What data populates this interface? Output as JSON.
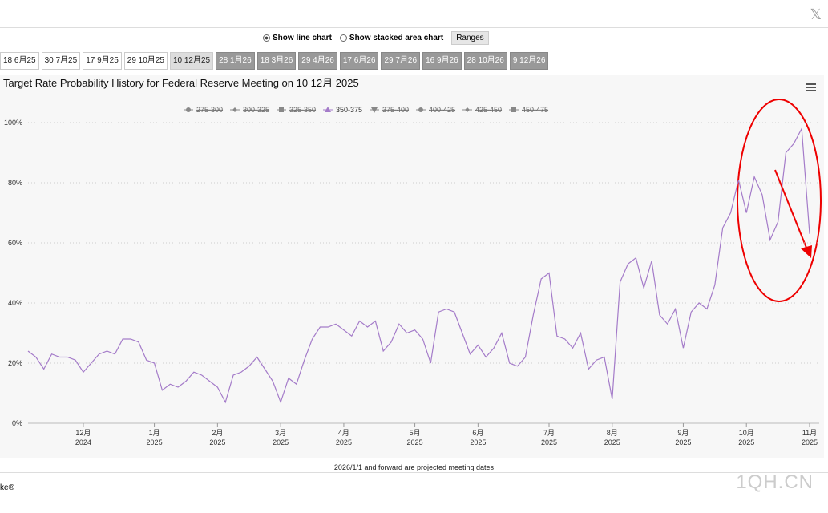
{
  "ui": {
    "options": [
      "Show line chart",
      "Show stacked area chart"
    ],
    "ranges": "Ranges",
    "tabs": [
      "18 6月25",
      "30 7月25",
      "17 9月25",
      "29 10月25",
      "10 12月25",
      "28 1月26",
      "18 3月26",
      "29 4月26",
      "17 6月26",
      "29 7月26",
      "16 9月26",
      "28 10月26",
      "9 12月26"
    ],
    "footnote": "2026/1/1 and forward are projected meeting dates",
    "credit": "ke",
    "watermark": "1QH.CN"
  },
  "chart_data": {
    "type": "line",
    "title": "Target Rate Probability History for Federal Reserve Meeting on 10 12月 2025",
    "hidden_series": [
      "275-300",
      "300-325",
      "325-350",
      "375-400",
      "400-425",
      "425-450",
      "450-475"
    ],
    "categories": [
      null,
      null,
      null,
      null,
      null,
      null,
      null,
      "12月",
      null,
      null,
      null,
      null,
      null,
      null,
      null,
      null,
      "1月",
      null,
      null,
      null,
      null,
      null,
      null,
      null,
      "2月",
      null,
      null,
      null,
      null,
      null,
      null,
      null,
      "3月",
      null,
      null,
      null,
      null,
      null,
      null,
      null,
      "4月",
      null,
      null,
      null,
      null,
      null,
      null,
      null,
      null,
      "5月",
      null,
      null,
      null,
      null,
      null,
      null,
      null,
      "6月",
      null,
      null,
      null,
      null,
      null,
      null,
      null,
      null,
      "7月",
      null,
      null,
      null,
      null,
      null,
      null,
      null,
      "8月",
      null,
      null,
      null,
      null,
      null,
      null,
      null,
      null,
      "9月",
      null,
      null,
      null,
      null,
      null,
      null,
      null,
      "10月",
      null,
      null,
      null,
      null,
      null,
      null,
      null,
      "11月"
    ],
    "category_years": [
      null,
      null,
      null,
      null,
      null,
      null,
      null,
      "2024",
      null,
      null,
      null,
      null,
      null,
      null,
      null,
      null,
      "2025",
      null,
      null,
      null,
      null,
      null,
      null,
      null,
      "2025",
      null,
      null,
      null,
      null,
      null,
      null,
      null,
      "2025",
      null,
      null,
      null,
      null,
      null,
      null,
      null,
      "2025",
      null,
      null,
      null,
      null,
      null,
      null,
      null,
      null,
      "2025",
      null,
      null,
      null,
      null,
      null,
      null,
      null,
      "2025",
      null,
      null,
      null,
      null,
      null,
      null,
      null,
      null,
      "2025",
      null,
      null,
      null,
      null,
      null,
      null,
      null,
      "2025",
      null,
      null,
      null,
      null,
      null,
      null,
      null,
      null,
      "2025",
      null,
      null,
      null,
      null,
      null,
      null,
      null,
      "2025",
      null,
      null,
      null,
      null,
      null,
      null,
      null,
      "2025"
    ],
    "series": [
      {
        "name": "350-375",
        "color": "#a47bc9",
        "values": [
          24,
          22,
          18,
          23,
          22,
          22,
          21,
          17,
          20,
          23,
          24,
          23,
          28,
          28,
          27,
          21,
          20,
          11,
          13,
          12,
          14,
          17,
          16,
          14,
          12,
          7,
          16,
          17,
          19,
          22,
          18,
          14,
          7,
          15,
          13,
          21,
          28,
          32,
          32,
          33,
          31,
          29,
          34,
          32,
          34,
          24,
          27,
          33,
          30,
          31,
          28,
          20,
          37,
          38,
          37,
          30,
          23,
          26,
          22,
          25,
          30,
          20,
          19,
          22,
          36,
          48,
          50,
          29,
          28,
          25,
          30,
          18,
          21,
          22,
          8,
          47,
          53,
          55,
          45,
          54,
          36,
          33,
          38,
          25,
          37,
          40,
          38,
          46,
          65,
          70,
          81,
          70,
          82,
          76,
          61,
          67,
          90,
          93,
          98,
          63
        ]
      }
    ],
    "ylim": [
      0,
      100
    ],
    "yticks": [
      {
        "value": 0,
        "label": "0%"
      },
      {
        "value": 20,
        "label": "20%"
      },
      {
        "value": 40,
        "label": "40%"
      },
      {
        "value": 60,
        "label": "60%"
      },
      {
        "value": 80,
        "label": "80%"
      },
      {
        "value": 100,
        "label": "100%"
      }
    ],
    "grid": true
  }
}
